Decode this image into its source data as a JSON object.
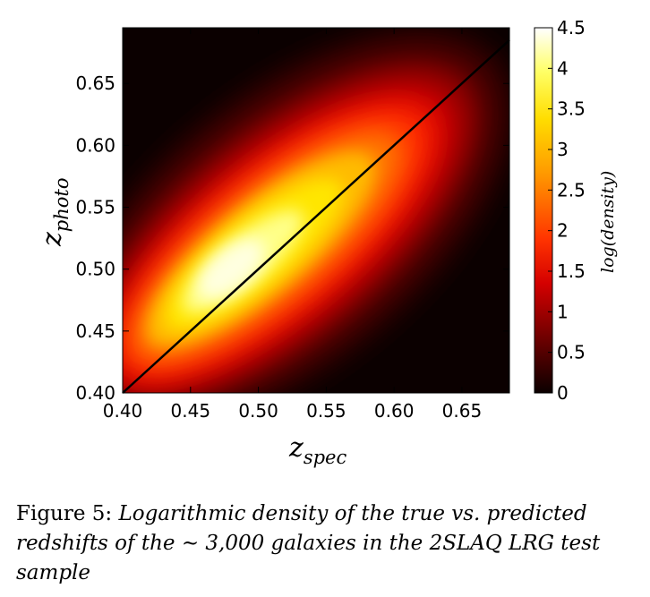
{
  "chart_data": {
    "type": "heatmap",
    "title": "",
    "xlabel": "z",
    "xlabel_sub": "spec",
    "ylabel": "z",
    "ylabel_sub": "photo",
    "xlim": [
      0.4,
      0.685
    ],
    "ylim": [
      0.4,
      0.695
    ],
    "xticks": [
      "0.40",
      "0.45",
      "0.50",
      "0.55",
      "0.60",
      "0.65"
    ],
    "yticks": [
      "0.40",
      "0.45",
      "0.50",
      "0.55",
      "0.60",
      "0.65"
    ],
    "colorbar": {
      "label": "log(density)",
      "range": [
        0,
        4.5
      ],
      "ticks": [
        "0",
        "0.5",
        "1",
        "1.5",
        "2",
        "2.5",
        "3",
        "3.5",
        "4",
        "4.5"
      ],
      "colormap": "hot"
    },
    "reference_line": {
      "from": [
        0.4,
        0.4
      ],
      "to": [
        0.685,
        0.685
      ],
      "color": "#000000"
    },
    "density_peak": {
      "x": 0.48,
      "y": 0.5,
      "value": 4.5
    },
    "ridge_slope": 0.9,
    "grid": false,
    "legend": "none"
  },
  "caption": {
    "label": "Figure 5:",
    "text": "Logarithmic density of the true vs. predicted redshifts of the ∼ 3,000 galaxies in the 2SLAQ LRG test sample"
  }
}
